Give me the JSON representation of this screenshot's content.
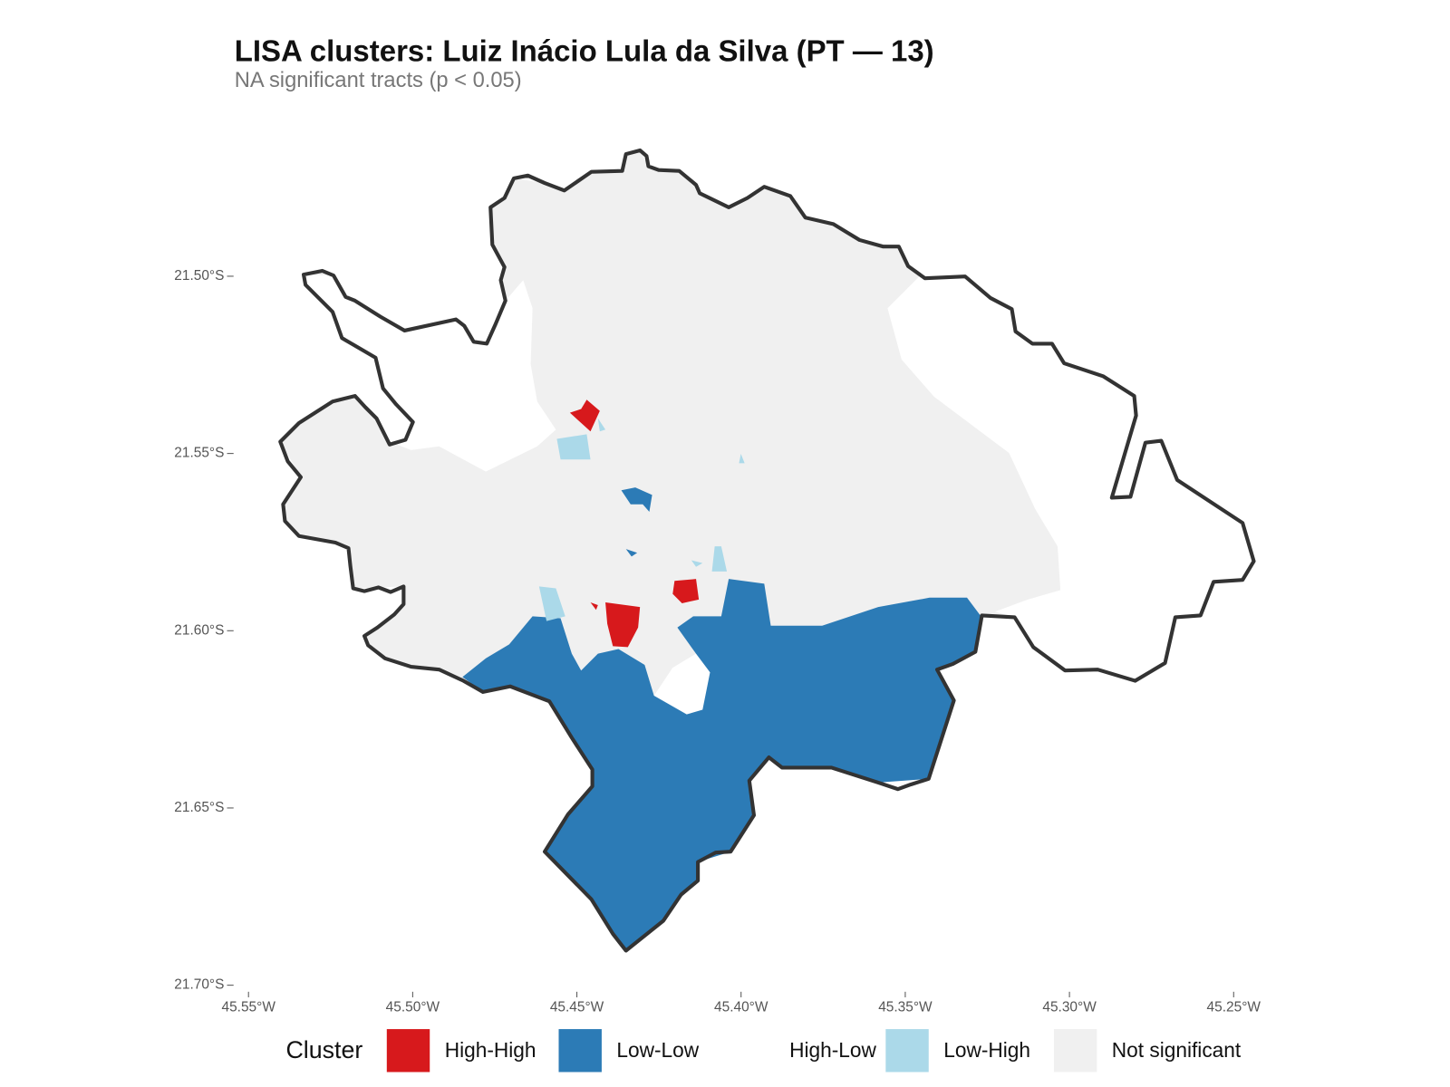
{
  "map": {
    "title": "LISA clusters: Luiz Inácio Lula da Silva (PT — 13)",
    "subtitle": "NA significant tracts (p < 0.05)",
    "xlim": [
      -45.555,
      -45.245
    ],
    "ylim": [
      -21.7,
      -21.45
    ],
    "xticks": [
      {
        "value": -45.55,
        "label": "45.55°W"
      },
      {
        "value": -45.5,
        "label": "45.50°W"
      },
      {
        "value": -45.45,
        "label": "45.45°W"
      },
      {
        "value": -45.4,
        "label": "45.40°W"
      },
      {
        "value": -45.35,
        "label": "45.35°W"
      },
      {
        "value": -45.3,
        "label": "45.30°W"
      },
      {
        "value": -45.25,
        "label": "45.25°W"
      }
    ],
    "yticks": [
      {
        "value": -21.5,
        "label": "21.50°S"
      },
      {
        "value": -21.55,
        "label": "21.55°S"
      },
      {
        "value": -21.6,
        "label": "21.60°S"
      },
      {
        "value": -21.65,
        "label": "21.65°S"
      },
      {
        "value": -21.7,
        "label": "21.70°S"
      }
    ],
    "legend": {
      "title": "Cluster",
      "entries": [
        {
          "name": "High-High",
          "color": "#d7191c"
        },
        {
          "name": "Low-Low",
          "color": "#2c7bb6"
        },
        {
          "name": "High-Low",
          "color": "#ffffff"
        },
        {
          "name": "Low-High",
          "color": "#abd9e9"
        },
        {
          "name": "Not significant",
          "color": "#f0f0f0"
        }
      ]
    }
  }
}
